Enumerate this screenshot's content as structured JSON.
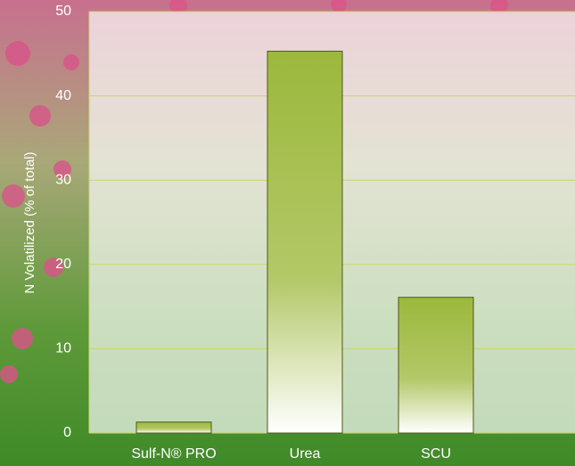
{
  "chart_data": {
    "type": "bar",
    "y_label": "N Volatilized (% of total)",
    "categories": [
      "Sulf-N® PRO",
      "Urea",
      "SCU"
    ],
    "values": [
      1.3,
      45.3,
      16.1
    ],
    "color": "#9cb83c",
    "ylim": [
      0,
      50
    ],
    "yticks": [
      0,
      10,
      20,
      30,
      40,
      50
    ],
    "grid": true
  }
}
